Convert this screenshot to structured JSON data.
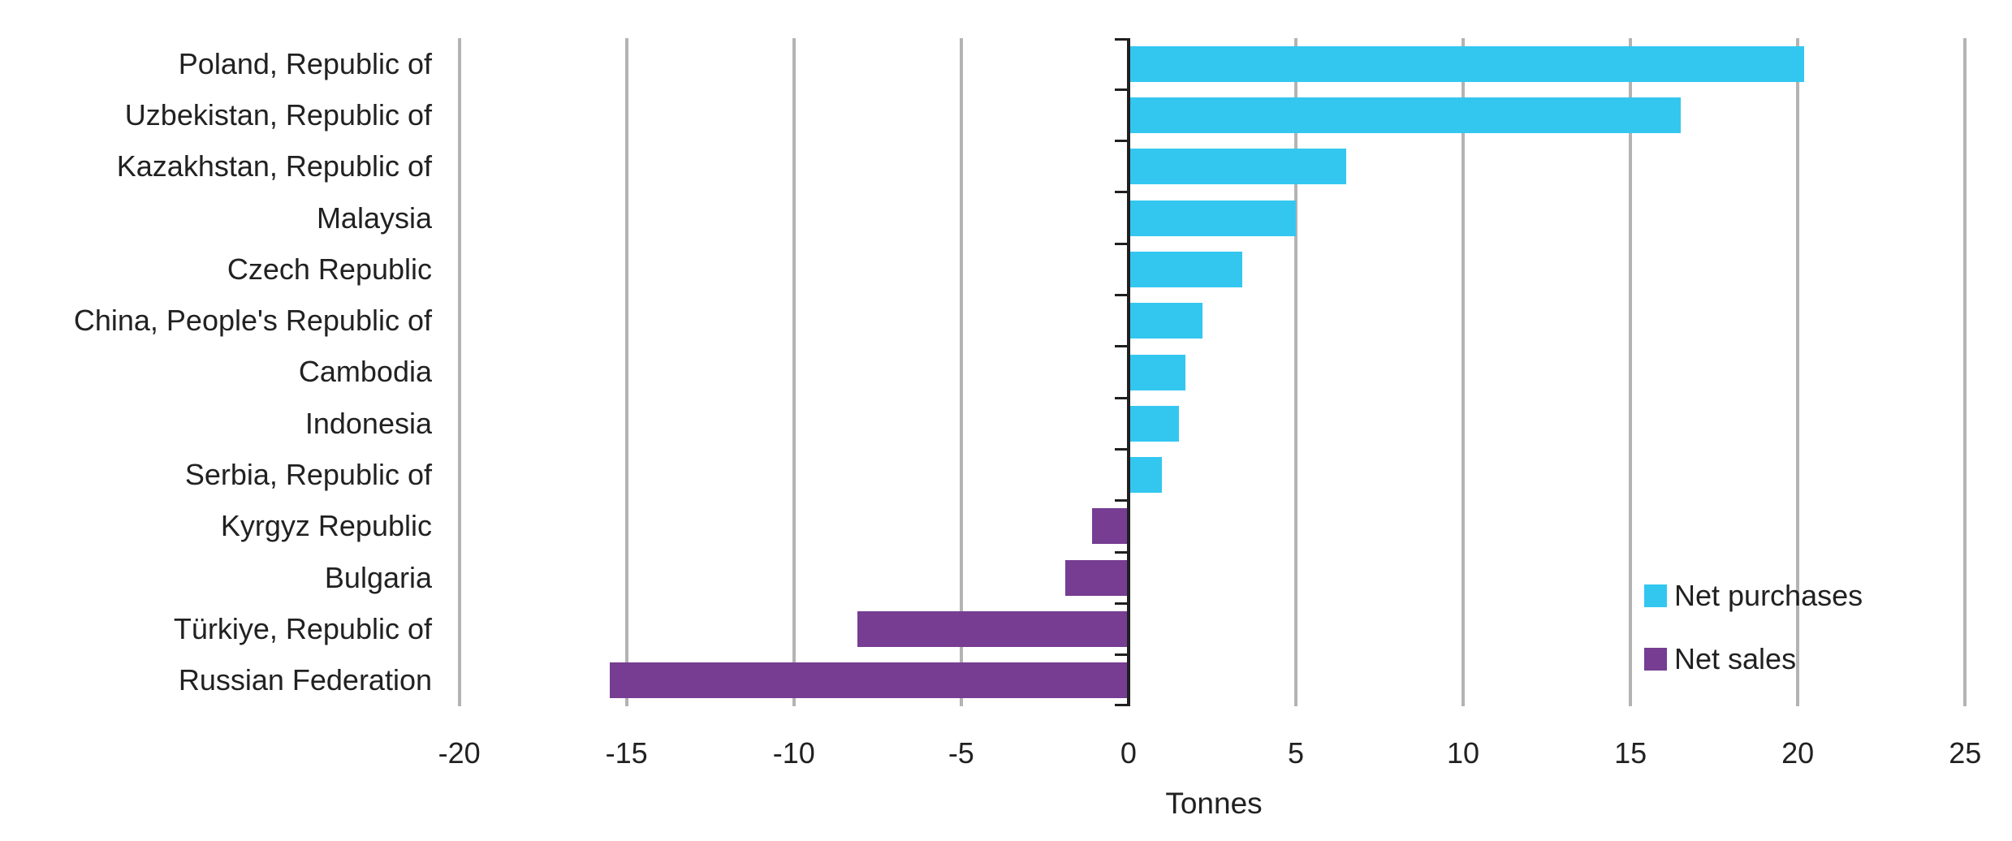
{
  "chart_data": {
    "type": "bar",
    "orientation": "horizontal",
    "title": "",
    "xlabel": "Tonnes",
    "categories": [
      "Poland, Republic of",
      "Uzbekistan, Republic of",
      "Kazakhstan, Republic of",
      "Malaysia",
      "Czech Republic",
      "China, People's Republic of",
      "Cambodia",
      "Indonesia",
      "Serbia, Republic of",
      "Kyrgyz Republic",
      "Bulgaria",
      "Türkiye, Republic of",
      "Russian Federation"
    ],
    "series": [
      {
        "name": "Net purchases",
        "color": "#33c7f0",
        "values": [
          20.2,
          16.5,
          6.5,
          5.0,
          3.4,
          2.2,
          1.7,
          1.5,
          1.0,
          null,
          null,
          null,
          null
        ]
      },
      {
        "name": "Net sales",
        "color": "#763d92",
        "values": [
          null,
          null,
          null,
          null,
          null,
          null,
          null,
          null,
          null,
          -1.1,
          -1.9,
          -8.1,
          -15.5
        ]
      }
    ],
    "axis": {
      "min": -20.5,
      "max": 25.6,
      "ticks": [
        -20,
        -15,
        -10,
        -5,
        0,
        5,
        10,
        15,
        20,
        25
      ],
      "grid": true
    },
    "legend_position": "bottom-right",
    "colors": {
      "gridline": "#b3b3b3",
      "axis": "#1f1f1f",
      "text": "#212121"
    }
  }
}
